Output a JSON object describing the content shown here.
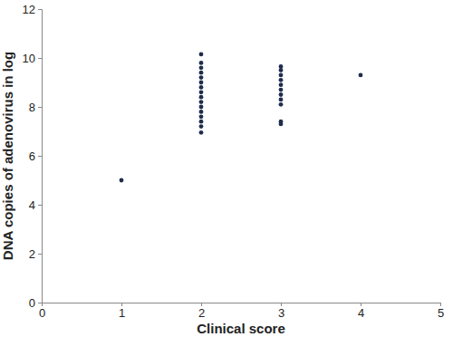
{
  "chart_data": {
    "type": "scatter",
    "x_label": "Clinical score",
    "y_label": "DNA copies of adenovirus in log",
    "x": [
      1,
      2,
      2,
      2,
      2,
      2,
      2,
      2,
      2,
      2,
      2,
      2,
      2,
      2,
      2,
      2,
      2,
      3,
      3,
      3,
      3,
      3,
      3,
      3,
      3,
      3,
      3,
      3,
      4
    ],
    "values": [
      5.0,
      6.95,
      7.2,
      7.4,
      7.6,
      7.8,
      8.0,
      8.2,
      8.4,
      8.6,
      8.8,
      9.0,
      9.2,
      9.4,
      9.6,
      9.8,
      10.15,
      7.3,
      7.4,
      8.1,
      8.3,
      8.5,
      8.7,
      8.9,
      9.1,
      9.3,
      9.5,
      9.65,
      9.3
    ],
    "color": "#1f2d4d",
    "marker": "circle",
    "xlim": [
      0,
      5
    ],
    "xticks": [
      0,
      1,
      2,
      3,
      4,
      5
    ],
    "ylim": [
      0,
      12
    ],
    "yticks": [
      0,
      2,
      4,
      6,
      8,
      10,
      12
    ],
    "grid": false
  }
}
